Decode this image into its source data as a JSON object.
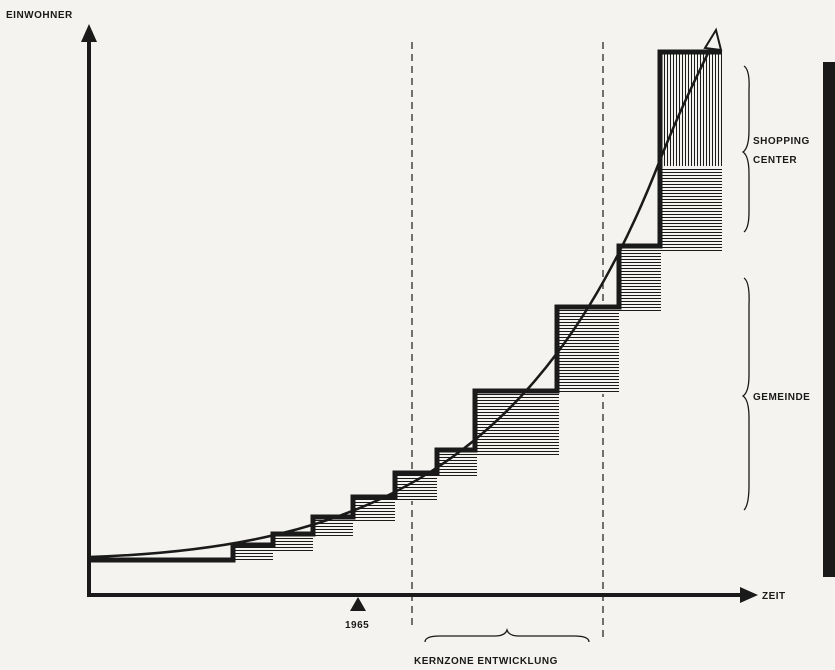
{
  "axes": {
    "y_label": "EINWOHNER",
    "x_label": "ZEIT",
    "year_marker": "1965"
  },
  "annotations": {
    "kernzone": "KERNZONE ENTWICKLUNG",
    "shopping_line1": "SHOPPING",
    "shopping_line2": "CENTER",
    "gemeinde": "GEMEINDE"
  },
  "colors": {
    "ink": "#1a1a1a",
    "paper": "#f4f3ef"
  }
}
